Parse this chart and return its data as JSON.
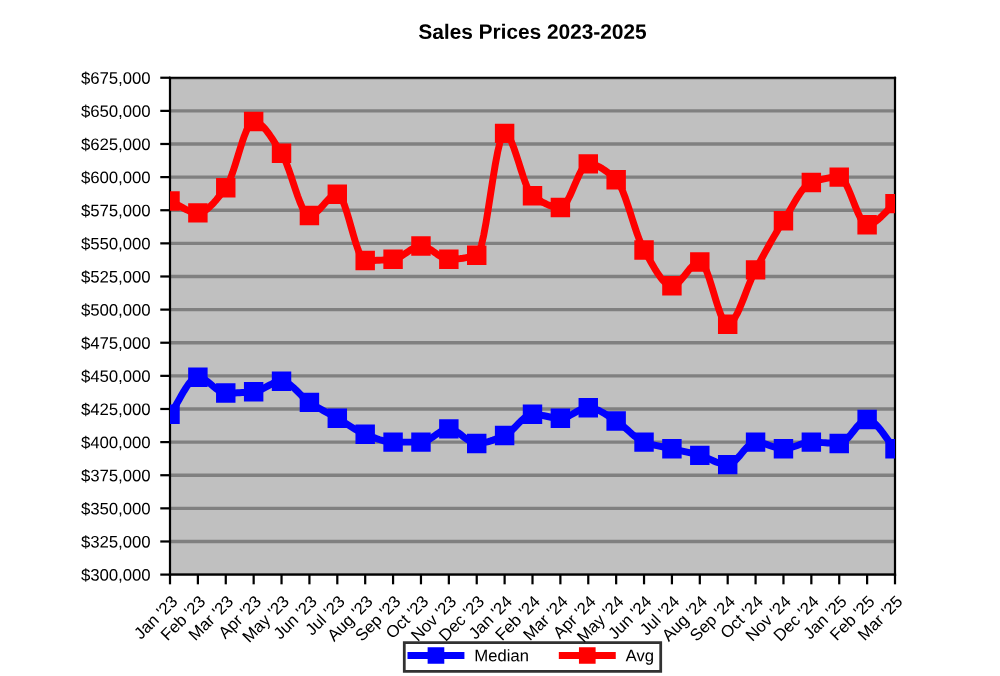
{
  "chart_data": {
    "type": "line",
    "title": "Sales Prices 2023-2025",
    "categories": [
      "Jan '23",
      "Feb '23",
      "Mar '23",
      "Apr '23",
      "May '23",
      "Jun '23",
      "Jul '23",
      "Aug '23",
      "Sep '23",
      "Oct '23",
      "Nov '23",
      "Dec '23",
      "Jan '24",
      "Feb '24",
      "Mar '24",
      "Apr '24",
      "May '24",
      "Jun '24",
      "Jul '24",
      "Aug '24",
      "Sep '24",
      "Oct '24",
      "Nov '24",
      "Dec '24",
      "Jan '25",
      "Feb '25",
      "Mar '25"
    ],
    "series": [
      {
        "name": "Median",
        "color": "#0000ff",
        "values": [
          421000,
          449000,
          437000,
          438000,
          446000,
          430000,
          418000,
          406000,
          400000,
          400000,
          410000,
          399000,
          405000,
          421000,
          418000,
          426000,
          416000,
          400000,
          395000,
          390000,
          383000,
          400000,
          395000,
          400000,
          399000,
          417000,
          395000
        ]
      },
      {
        "name": "Avg",
        "color": "#ff0000",
        "values": [
          582000,
          573000,
          592000,
          642000,
          618000,
          571000,
          587000,
          537000,
          538000,
          548000,
          538000,
          541000,
          633000,
          586000,
          577000,
          610000,
          598000,
          545000,
          518000,
          536000,
          489000,
          530000,
          567000,
          596000,
          600000,
          564000,
          580000
        ]
      }
    ],
    "ylim": [
      300000,
      675000
    ],
    "yticks": [
      {
        "value": 300000,
        "label": "$300,000"
      },
      {
        "value": 325000,
        "label": "$325,000"
      },
      {
        "value": 350000,
        "label": "$350,000"
      },
      {
        "value": 375000,
        "label": "$375,000"
      },
      {
        "value": 400000,
        "label": "$400,000"
      },
      {
        "value": 425000,
        "label": "$425,000"
      },
      {
        "value": 450000,
        "label": "$450,000"
      },
      {
        "value": 475000,
        "label": "$475,000"
      },
      {
        "value": 500000,
        "label": "$500,000"
      },
      {
        "value": 525000,
        "label": "$525,000"
      },
      {
        "value": 550000,
        "label": "$550,000"
      },
      {
        "value": 575000,
        "label": "$575,000"
      },
      {
        "value": 600000,
        "label": "$600,000"
      },
      {
        "value": 625000,
        "label": "$625,000"
      },
      {
        "value": 650000,
        "label": "$650,000"
      },
      {
        "value": 675000,
        "label": "$675,000"
      }
    ],
    "grid": "y",
    "legend": "bottom",
    "marker": "square",
    "line_style": "solid"
  }
}
